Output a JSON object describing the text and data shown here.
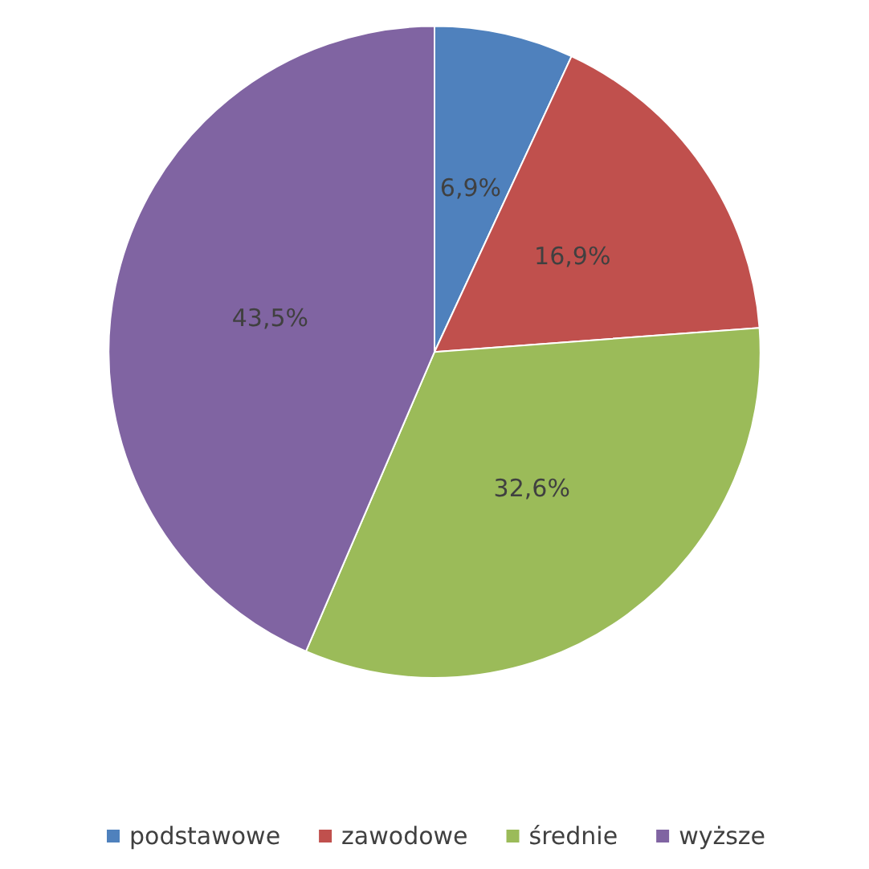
{
  "chart_data": {
    "type": "pie",
    "categories": [
      "podstawowe",
      "zawodowe",
      "średnie",
      "wyższe"
    ],
    "values": [
      6.9,
      16.9,
      32.6,
      43.5
    ],
    "value_labels": [
      "6,9%",
      "16,9%",
      "32,6%",
      "43,5%"
    ],
    "colors": [
      "#4f81bd",
      "#c0504d",
      "#9bbb59",
      "#8064a2"
    ],
    "legend": "bottom"
  }
}
